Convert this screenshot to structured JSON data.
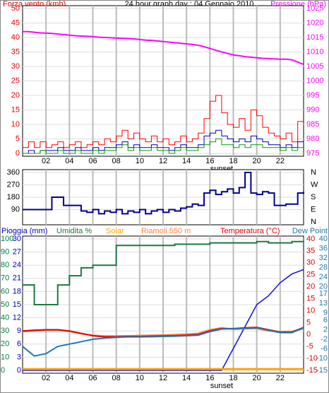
{
  "chart_data": [
    {
      "type": "line",
      "title": "24 hour graph day : 04 Gennaio 2010",
      "ylabel": "Forza vento (kmh)",
      "y2label": "Pressione (hPa)",
      "x": [
        0,
        0.5,
        1,
        1.5,
        2,
        2.5,
        3,
        3.5,
        4,
        4.5,
        5,
        5.5,
        6,
        6.5,
        7,
        7.5,
        8,
        8.5,
        9,
        9.5,
        10,
        10.5,
        11,
        11.5,
        12,
        12.5,
        13,
        13.5,
        14,
        14.5,
        15,
        15.5,
        16,
        16.5,
        17,
        17.5,
        18,
        18.5,
        19,
        19.5,
        20,
        20.5,
        21,
        21.5,
        22,
        22.5,
        23,
        23.5,
        24
      ],
      "xlim": [
        0,
        24
      ],
      "xticks": [
        {
          "value": 2,
          "label": "02"
        },
        {
          "value": 4,
          "label": "04"
        },
        {
          "value": 6,
          "label": "06"
        },
        {
          "value": 8,
          "label": "08"
        },
        10,
        12,
        14,
        16,
        18,
        20,
        22
      ],
      "show_xtick_labels": true,
      "ylim": [
        0,
        50
      ],
      "yticks": [
        0,
        5,
        10,
        15,
        20,
        25,
        30,
        35,
        40,
        45,
        50
      ],
      "ytick_color": "#e00000",
      "y2lim": [
        975,
        1025
      ],
      "y2ticks": [
        975,
        980,
        985,
        990,
        995,
        1000,
        1005,
        1010,
        1015,
        1020,
        1025
      ],
      "y2tick_color": "#ff00ff",
      "grid": true,
      "annotation": {
        "text": "sunset",
        "x": 17
      },
      "series": [
        {
          "color": "#ff0000",
          "step": true,
          "values": [
            2,
            4,
            2,
            4,
            2,
            3,
            4,
            2,
            3,
            4,
            2,
            3,
            4,
            3,
            5,
            4,
            6,
            8,
            5,
            7,
            5,
            4,
            6,
            4,
            5,
            3,
            4,
            6,
            4,
            5,
            7,
            12,
            18,
            20,
            14,
            10,
            9,
            12,
            8,
            15,
            13,
            9,
            7,
            6,
            5,
            7,
            4,
            11,
            11
          ]
        },
        {
          "color": "#0000c0",
          "step": true,
          "values": [
            0,
            1,
            0,
            1,
            1,
            1,
            2,
            1,
            1,
            2,
            1,
            1,
            2,
            1,
            2,
            2,
            3,
            4,
            2,
            3,
            2,
            2,
            3,
            2,
            2,
            1,
            2,
            3,
            2,
            2,
            3,
            6,
            7,
            8,
            6,
            5,
            4,
            5,
            4,
            6,
            5,
            4,
            3,
            3,
            2,
            3,
            2,
            4,
            4
          ]
        },
        {
          "color": "#00a000",
          "step": true,
          "values": [
            0,
            0,
            0,
            1,
            0,
            0,
            1,
            0,
            0,
            1,
            0,
            0,
            1,
            0,
            1,
            1,
            2,
            3,
            1,
            2,
            1,
            1,
            2,
            1,
            1,
            0,
            1,
            2,
            1,
            1,
            2,
            3,
            4,
            5,
            3,
            3,
            2,
            3,
            2,
            3,
            3,
            2,
            2,
            2,
            1,
            2,
            1,
            2,
            2
          ]
        },
        {
          "color": "#ff00ff",
          "axis": "y2",
          "width": 2,
          "values": [
            1017,
            1017,
            1016.8,
            1016.6,
            1016.5,
            1016.4,
            1016.2,
            1016,
            1015.8,
            1015.6,
            1015.5,
            1015.4,
            1015.3,
            1015.1,
            1015,
            1014.9,
            1014.8,
            1014.7,
            1014.6,
            1014.5,
            1014.3,
            1014.1,
            1014,
            1013.8,
            1013.6,
            1013.4,
            1013.2,
            1013,
            1012.8,
            1012.6,
            1012.3,
            1011.8,
            1011.2,
            1010.6,
            1010,
            1009.5,
            1009,
            1008.7,
            1008.4,
            1008.2,
            1008,
            1007.8,
            1007.7,
            1007.6,
            1007.5,
            1007.5,
            1007.3,
            1006.5,
            1005.7
          ]
        }
      ]
    },
    {
      "type": "line",
      "x": [
        0,
        0.5,
        1,
        1.5,
        2,
        2.5,
        3,
        3.5,
        4,
        4.5,
        5,
        5.5,
        6,
        6.5,
        7,
        7.5,
        8,
        8.5,
        9,
        9.5,
        10,
        10.5,
        11,
        11.5,
        12,
        12.5,
        13,
        13.5,
        14,
        14.5,
        15,
        15.5,
        16,
        16.5,
        17,
        17.5,
        18,
        18.5,
        19,
        19.5,
        20,
        20.5,
        21,
        21.5,
        22,
        22.5,
        23,
        23.5,
        24
      ],
      "xlim": [
        0,
        24
      ],
      "xticks": [
        2,
        4,
        6,
        8,
        10,
        12,
        14,
        16,
        18,
        20,
        22
      ],
      "show_xtick_labels": false,
      "ylim": [
        0,
        360
      ],
      "yticks": [
        90,
        180,
        270,
        360
      ],
      "ytick_color": "#000000",
      "y2lim": [
        0,
        360
      ],
      "y2ticks": [
        {
          "value": 0,
          "label": "N"
        },
        {
          "value": 90,
          "label": "E"
        },
        {
          "value": 180,
          "label": "S"
        },
        {
          "value": 270,
          "label": "W"
        },
        {
          "value": 360,
          "label": "N"
        }
      ],
      "y2tick_color": "#000000",
      "grid": true,
      "series": [
        {
          "color": "#000090",
          "step": true,
          "width": 2,
          "values": [
            90,
            90,
            90,
            90,
            90,
            180,
            180,
            120,
            120,
            120,
            80,
            70,
            90,
            60,
            80,
            70,
            90,
            60,
            80,
            70,
            90,
            60,
            80,
            90,
            70,
            90,
            80,
            100,
            110,
            130,
            120,
            210,
            230,
            200,
            220,
            240,
            210,
            250,
            360,
            210,
            200,
            220,
            210,
            120,
            120,
            130,
            130,
            210,
            220
          ]
        }
      ]
    },
    {
      "type": "line",
      "x": [
        0,
        1,
        2,
        3,
        4,
        5,
        6,
        7,
        8,
        9,
        10,
        11,
        12,
        13,
        14,
        15,
        16,
        17,
        18,
        19,
        20,
        21,
        22,
        23,
        24
      ],
      "xlim": [
        0,
        24
      ],
      "xticks": [
        {
          "value": 2,
          "label": "02"
        },
        {
          "value": 4,
          "label": "04"
        },
        {
          "value": 6,
          "label": "06"
        },
        {
          "value": 8,
          "label": "08"
        },
        10,
        12,
        14,
        16,
        18,
        20,
        22
      ],
      "show_xtick_labels": true,
      "ylim": [
        0,
        100
      ],
      "yticks": [
        0,
        10,
        20,
        30,
        40,
        50,
        60,
        70,
        80,
        90,
        100
      ],
      "ytick_color": "#008040",
      "y3lim": [
        0,
        30
      ],
      "y3ticks": [
        0,
        3,
        6,
        9,
        12,
        15,
        18,
        21,
        24,
        27,
        30
      ],
      "y3tick_color": "#0000c0",
      "y2lim": [
        -15,
        40
      ],
      "y2ticks": [
        -15,
        -10,
        -5,
        0,
        5,
        10,
        15,
        20,
        25,
        30,
        35,
        40
      ],
      "y2tick_color": "#e00000",
      "y4lim": [
        -15,
        40
      ],
      "y4ticks": [
        -15,
        -10,
        -6,
        -2,
        2,
        6,
        9,
        13,
        17,
        20,
        24,
        28,
        32,
        36,
        40
      ],
      "y4tick_color": "#1e78b4",
      "grid": true,
      "annotation": {
        "text": "sunset",
        "x": 17
      },
      "series": [
        {
          "name": "Pioggia (mm)",
          "color": "#1010e0",
          "axis": "y3",
          "width": 1.5,
          "values": [
            0,
            0,
            0,
            0,
            0,
            0,
            0,
            0,
            0,
            0,
            0,
            0,
            0,
            0,
            0,
            0,
            0,
            0,
            5,
            10,
            15,
            17,
            20,
            22,
            23
          ]
        },
        {
          "name": "Umidita %",
          "color": "#1a7a40",
          "step": true,
          "width": 2,
          "values": [
            65,
            50,
            50,
            65,
            72,
            78,
            80,
            80,
            95,
            95,
            95,
            95,
            95,
            96,
            96,
            96,
            97,
            97,
            97,
            97,
            98,
            97,
            97,
            98,
            98
          ]
        },
        {
          "name": "Solar",
          "color": "#ffa500",
          "width": 3,
          "values": [
            1,
            1,
            1,
            1,
            1,
            1,
            1,
            1,
            1,
            1,
            1,
            1,
            1,
            1,
            1,
            1,
            1,
            1,
            1,
            1,
            1,
            1,
            1,
            1,
            1
          ]
        },
        {
          "name": "Riamoli 550 m",
          "color": "#ff8040",
          "axis": "y2",
          "width": 2,
          "values": [
            1.2,
            1.5,
            1.8,
            1.8,
            1.3,
            0.3,
            -0.3,
            -0.6,
            -0.6,
            -0.5,
            -0.4,
            -0.3,
            -0.2,
            0,
            0.2,
            0.5,
            2,
            2.8,
            2.2,
            2.4,
            2.5,
            1.5,
            1.2,
            1.3,
            2.5
          ]
        },
        {
          "name": "Temperatura (°C)",
          "color": "#e00000",
          "axis": "y2",
          "width": 2,
          "values": [
            1.5,
            1.8,
            2,
            2,
            1.5,
            0.5,
            -0.5,
            -1,
            -1,
            -0.8,
            -0.8,
            -0.7,
            -0.6,
            -0.5,
            -0.3,
            0,
            1.5,
            2.5,
            2.5,
            2.8,
            3,
            2,
            1,
            1,
            3
          ]
        },
        {
          "name": "Dew Point",
          "color": "#1e78b4",
          "axis": "y2",
          "width": 2,
          "values": [
            -5,
            -9,
            -8,
            -5,
            -4,
            -3,
            -2,
            -1.5,
            -1.2,
            -1,
            -1,
            -0.9,
            -0.8,
            -0.7,
            -0.5,
            -0.3,
            1.2,
            2.3,
            2.4,
            2.6,
            2.8,
            1.8,
            0.8,
            0.8,
            2.8
          ]
        }
      ]
    }
  ]
}
